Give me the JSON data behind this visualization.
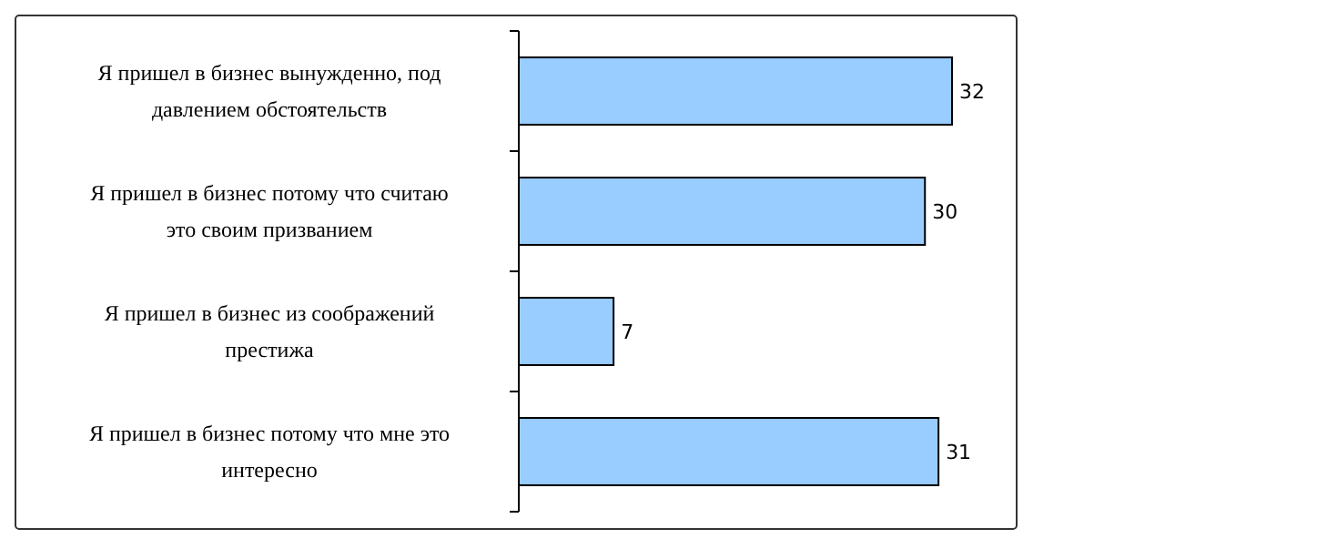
{
  "chart_data": {
    "type": "bar",
    "orientation": "horizontal",
    "categories": [
      "Я пришел в бизнес вынужденно, под давлением обстоятельств",
      "Я пришел в бизнес потому что считаю это своим призванием",
      "Я пришел в бизнес из соображений престижа",
      "Я пришел в бизнес потому что мне это интересно"
    ],
    "values": [
      32,
      30,
      7,
      31
    ],
    "color": "#99ccff",
    "data_labels": true
  }
}
